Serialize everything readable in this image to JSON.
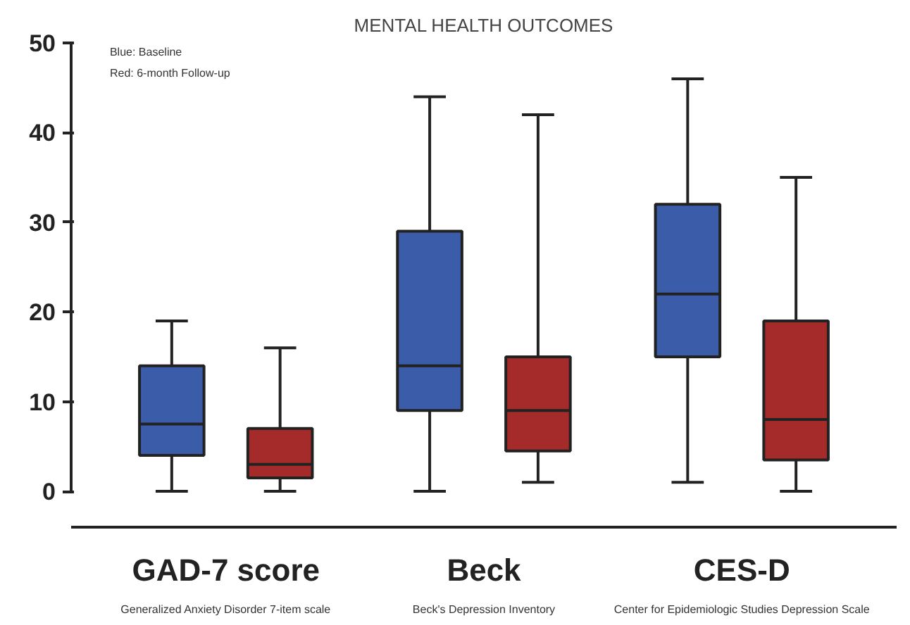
{
  "chart_data": {
    "type": "box",
    "title": "MENTAL HEALTH OUTCOMES",
    "categories": [
      "GAD-7 score",
      "Beck",
      "CES-D"
    ],
    "ylim": [
      -4,
      50
    ],
    "yticks": [
      0,
      10,
      20,
      30,
      40,
      50
    ],
    "grid": false,
    "series": [
      {
        "color": "#3b5ca8",
        "boxes": [
          {
            "low": 0,
            "q1": 4,
            "median": 7.5,
            "q3": 14,
            "high": 19
          },
          {
            "low": 0,
            "q1": 9,
            "median": 14,
            "q3": 29,
            "high": 44
          },
          {
            "low": 1,
            "q1": 15,
            "median": 22,
            "q3": 32,
            "high": 46
          }
        ]
      },
      {
        "color": "#a52a2a",
        "boxes": [
          {
            "low": 0,
            "q1": 1.5,
            "median": 3,
            "q3": 7,
            "high": 16
          },
          {
            "low": 1,
            "q1": 4.5,
            "median": 9,
            "q3": 15,
            "high": 42
          },
          {
            "low": 0,
            "q1": 3.5,
            "median": 8,
            "q3": 19,
            "high": 35
          }
        ]
      }
    ],
    "annotations": [
      "Blue: Baseline",
      "Red: 6-month Follow-up",
      "Generalized Anxiety Disorder 7-item scale",
      "Beck's Depression Inventory",
      "Center for Epidemiologic Studies Depression Scale"
    ]
  }
}
